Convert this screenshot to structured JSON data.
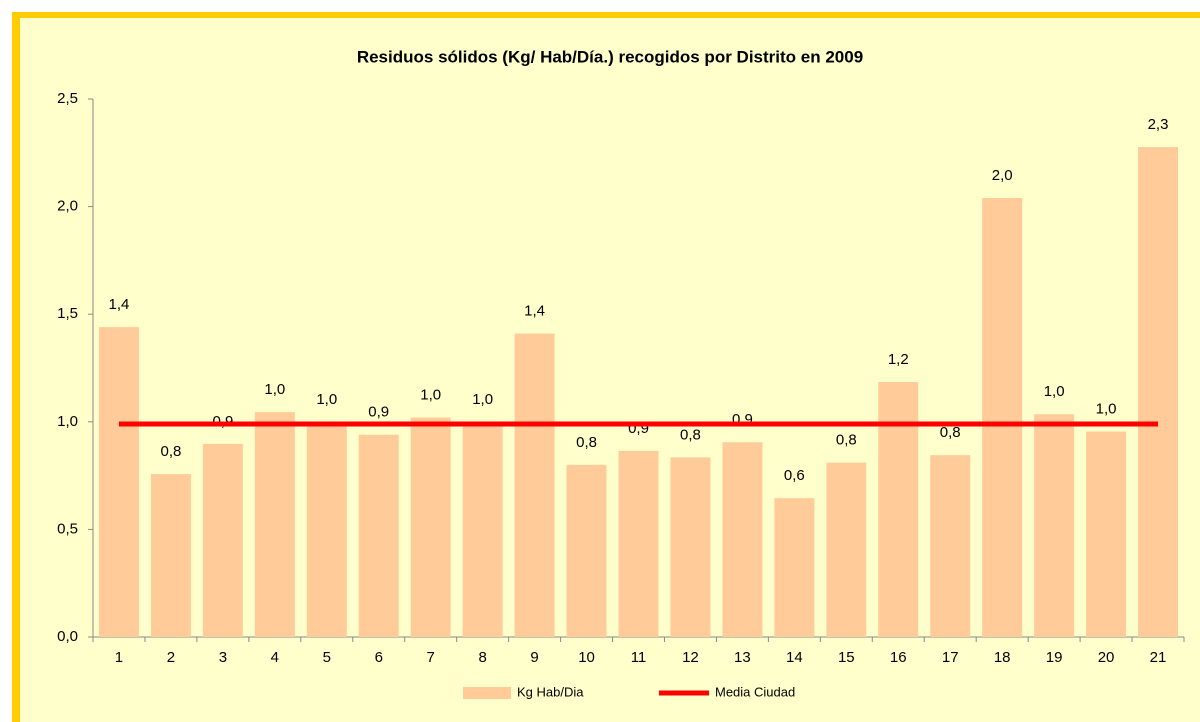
{
  "chart_data": {
    "type": "bar",
    "title": "Residuos sólidos (Kg/ Hab/Día.) recogidos por Distrito en 2009",
    "categories": [
      "1",
      "2",
      "3",
      "4",
      "5",
      "6",
      "7",
      "8",
      "9",
      "10",
      "11",
      "12",
      "13",
      "14",
      "15",
      "16",
      "17",
      "18",
      "19",
      "20",
      "21"
    ],
    "series": [
      {
        "name": "Kg Hab/Dia",
        "color": "#ffcc99",
        "type": "bar",
        "values": [
          1.44,
          0.757,
          0.897,
          1.045,
          1.0,
          0.94,
          1.02,
          1.0,
          1.41,
          0.8,
          0.865,
          0.835,
          0.905,
          0.645,
          0.81,
          1.185,
          0.845,
          2.04,
          1.035,
          0.955,
          2.277
        ],
        "value_labels": [
          "1,4",
          "0,8",
          "0,9",
          "1,0",
          "1,0",
          "0,9",
          "1,0",
          "1,0",
          "1,4",
          "0,8",
          "0,9",
          "0,8",
          "0,9",
          "0,6",
          "0,8",
          "1,2",
          "0,8",
          "2,0",
          "1,0",
          "1,0",
          "2,3"
        ]
      },
      {
        "name": "Media Ciudad",
        "color": "#ff0000",
        "type": "line",
        "values": [
          0.99,
          0.99,
          0.99,
          0.99,
          0.99,
          0.99,
          0.99,
          0.99,
          0.99,
          0.99,
          0.99,
          0.99,
          0.99,
          0.99,
          0.99,
          0.99,
          0.99,
          0.99,
          0.99,
          0.99,
          0.99
        ]
      }
    ],
    "ylim": [
      0,
      2.5
    ],
    "yticks": [
      {
        "value": 0,
        "label": "0,0"
      },
      {
        "value": 0.5,
        "label": "0,5"
      },
      {
        "value": 1,
        "label": "1,0"
      },
      {
        "value": 1.5,
        "label": "1,5"
      },
      {
        "value": 2,
        "label": "2,0"
      },
      {
        "value": 2.5,
        "label": "2,5"
      }
    ],
    "legend": "bottom"
  }
}
